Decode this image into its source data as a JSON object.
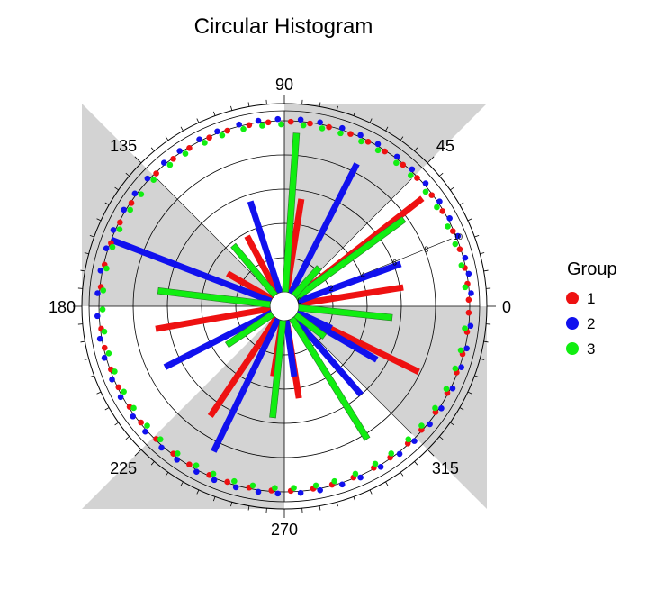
{
  "chart_data": {
    "type": "circular-histogram",
    "title": "Circular Histogram",
    "angle_labels": [
      {
        "angle": 0,
        "label": "0"
      },
      {
        "angle": 45,
        "label": "45"
      },
      {
        "angle": 90,
        "label": "90"
      },
      {
        "angle": 135,
        "label": "135"
      },
      {
        "angle": 180,
        "label": "180"
      },
      {
        "angle": 225,
        "label": "225"
      },
      {
        "angle": 270,
        "label": "270"
      },
      {
        "angle": 315,
        "label": "315"
      }
    ],
    "radial_ticks": [
      "0",
      "2",
      "4",
      "6",
      "8",
      "10"
    ],
    "radial_max": 11,
    "shaded_sectors": [
      [
        45,
        90
      ],
      [
        135,
        180
      ],
      [
        225,
        270
      ],
      [
        315,
        360
      ]
    ],
    "legend": {
      "title": "Group",
      "position": "right"
    },
    "colors": {
      "1": "#ee1111",
      "2": "#1111ee",
      "3": "#11ee11",
      "shade": "#d3d3d3"
    },
    "series": [
      {
        "name": "1",
        "bins": [
          [
            9,
            6.2
          ],
          [
            38,
            9.4
          ],
          [
            81,
            5.5
          ],
          [
            118,
            3.8
          ],
          [
            150,
            3.0
          ],
          [
            190,
            6.8
          ],
          [
            236,
            6.9
          ],
          [
            261,
            3.3
          ],
          [
            279,
            4.6
          ],
          [
            334,
            7.9
          ]
        ]
      },
      {
        "name": "2",
        "bins": [
          [
            20,
            6.4
          ],
          [
            63,
            8.5
          ],
          [
            108,
            5.6
          ],
          [
            159,
            10.0
          ],
          [
            207,
            7.0
          ],
          [
            244,
            8.6
          ],
          [
            278,
            3.3
          ],
          [
            311,
            6.0
          ],
          [
            330,
            5.4
          ],
          [
            335,
            2.2
          ]
        ]
      },
      {
        "name": "3",
        "bins": [
          [
            -6,
            5.5
          ],
          [
            36,
            7.8
          ],
          [
            86,
            9.3
          ],
          [
            130,
            3.8
          ],
          [
            173,
            6.6
          ],
          [
            214,
            3.2
          ],
          [
            264,
            5.7
          ],
          [
            302,
            8.3
          ],
          [
            323,
            2.1
          ],
          [
            48,
            2.2
          ]
        ]
      }
    ],
    "raw_points": [
      {
        "group": "1",
        "angles": [
          2,
          7,
          12,
          18,
          24,
          31,
          37,
          44,
          50,
          57,
          63,
          69,
          76,
          82,
          88,
          95,
          101,
          108,
          114,
          121,
          127,
          134,
          146,
          153,
          160,
          167,
          174,
          187,
          193,
          200,
          206,
          213,
          219,
          226,
          233,
          239,
          246,
          252,
          259,
          266,
          272,
          279,
          285,
          292,
          299,
          305,
          312,
          318,
          325,
          332,
          339,
          345,
          352,
          358
        ]
      },
      {
        "group": "2",
        "angles": [
          4,
          10,
          15,
          22,
          28,
          34,
          41,
          47,
          53,
          60,
          66,
          72,
          79,
          85,
          92,
          98,
          104,
          111,
          117,
          124,
          130,
          137,
          143,
          149,
          156,
          162,
          169,
          176,
          183,
          190,
          196,
          203,
          209,
          216,
          222,
          229,
          235,
          242,
          248,
          255,
          262,
          268,
          275,
          281,
          288,
          294,
          301,
          308,
          314,
          321,
          327,
          334,
          341,
          347,
          354
        ]
      },
      {
        "group": "3",
        "angles": [
          6,
          13,
          20,
          26,
          33,
          39,
          46,
          52,
          59,
          65,
          72,
          78,
          84,
          91,
          97,
          103,
          110,
          116,
          123,
          129,
          136,
          142,
          148,
          155,
          161,
          168,
          175,
          181,
          188,
          195,
          201,
          208,
          214,
          221,
          227,
          234,
          241,
          247,
          254,
          260,
          267,
          273,
          280,
          286,
          293,
          300,
          306,
          313,
          319,
          326,
          333,
          340,
          346,
          353
        ]
      }
    ]
  }
}
